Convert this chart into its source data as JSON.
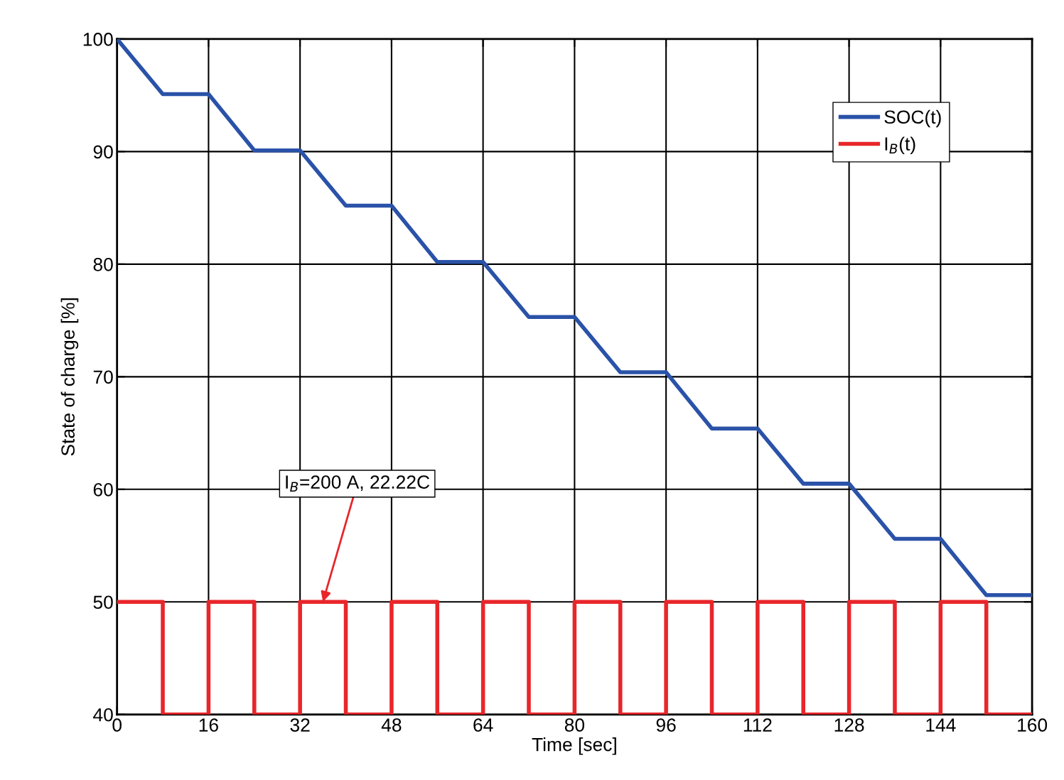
{
  "chart_data": {
    "type": "line",
    "xlabel": "Time [sec]",
    "ylabel": "State of charge [%]",
    "xlim": [
      0,
      160
    ],
    "xticks": [
      0,
      16,
      32,
      48,
      64,
      80,
      96,
      112,
      128,
      144,
      160
    ],
    "ylim": [
      40,
      100
    ],
    "yticks": [
      40,
      50,
      60,
      70,
      80,
      90,
      100
    ],
    "grid": true,
    "legend": "top right",
    "line_style": "solid",
    "marker": "none",
    "series": [
      {
        "name": "SOC(t)",
        "color": "#2a52a8",
        "x": [
          0,
          8,
          16,
          24,
          32,
          40,
          48,
          56,
          64,
          72,
          80,
          88,
          96,
          104,
          112,
          120,
          128,
          136,
          144,
          152,
          160
        ],
        "values": [
          100,
          95.1,
          95.1,
          90.1,
          90.1,
          85.2,
          85.2,
          80.2,
          80.2,
          75.3,
          75.3,
          70.4,
          70.4,
          65.4,
          65.4,
          60.5,
          60.5,
          55.6,
          55.6,
          50.6,
          50.6
        ]
      },
      {
        "name": "I$_{B}$(t)",
        "color": "#e8262a",
        "type": "step",
        "x": [
          0,
          8,
          16,
          24,
          32,
          40,
          48,
          56,
          64,
          72,
          80,
          88,
          96,
          104,
          112,
          120,
          128,
          136,
          144,
          152,
          160
        ],
        "values": [
          50,
          40,
          50,
          40,
          50,
          40,
          50,
          40,
          50,
          40,
          50,
          40,
          50,
          40,
          50,
          40,
          50,
          40,
          50,
          40,
          40
        ]
      }
    ],
    "annotations": [
      {
        "text": "I$_{B}$=200 A, 22.22C",
        "x": 36,
        "y": 50
      }
    ]
  }
}
